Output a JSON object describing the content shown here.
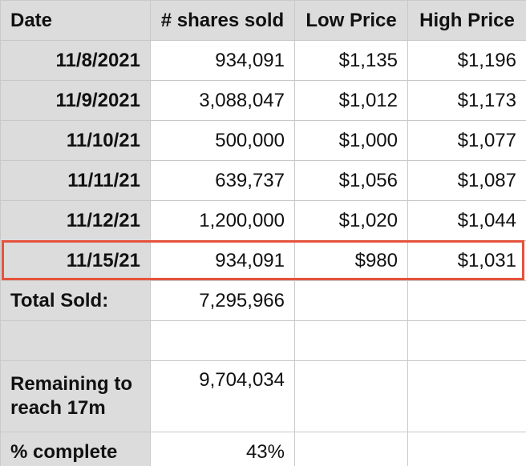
{
  "table": {
    "headers": [
      "Date",
      "# shares sold",
      "Low Price",
      "High Price"
    ],
    "rows": [
      {
        "date": "11/8/2021",
        "shares": "934,091",
        "low": "$1,135",
        "high": "$1,196"
      },
      {
        "date": "11/9/2021",
        "shares": "3,088,047",
        "low": "$1,012",
        "high": "$1,173"
      },
      {
        "date": "11/10/21",
        "shares": "500,000",
        "low": "$1,000",
        "high": "$1,077"
      },
      {
        "date": "11/11/21",
        "shares": "639,737",
        "low": "$1,056",
        "high": "$1,087"
      },
      {
        "date": "11/12/21",
        "shares": "1,200,000",
        "low": "$1,020",
        "high": "$1,044"
      },
      {
        "date": "11/15/21",
        "shares": "934,091",
        "low": "$980",
        "high": "$1,031"
      }
    ],
    "total": {
      "label": "Total Sold:",
      "value": "7,295,966"
    },
    "remaining": {
      "label": "Remaining to reach 17m",
      "value": "9,704,034"
    },
    "percent": {
      "label": "% complete",
      "value": "43%"
    }
  },
  "highlight_color": "#e5533c"
}
